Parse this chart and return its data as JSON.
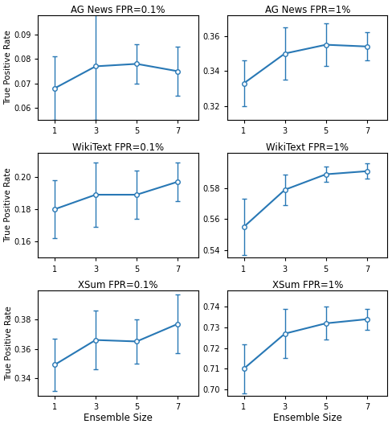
{
  "subplots": [
    {
      "title": "AG News FPR=0.1%",
      "x": [
        1,
        3,
        5,
        7
      ],
      "y": [
        0.068,
        0.077,
        0.078,
        0.075
      ],
      "yerr": [
        0.013,
        0.022,
        0.008,
        0.01
      ],
      "ylim": [
        0.055,
        0.098
      ],
      "yticks": [
        0.06,
        0.07,
        0.08,
        0.09
      ]
    },
    {
      "title": "AG News FPR=1%",
      "x": [
        1,
        3,
        5,
        7
      ],
      "y": [
        0.333,
        0.35,
        0.355,
        0.354
      ],
      "yerr": [
        0.013,
        0.015,
        0.012,
        0.008
      ],
      "ylim": [
        0.312,
        0.372
      ],
      "yticks": [
        0.32,
        0.34,
        0.36
      ]
    },
    {
      "title": "WikiText FPR=0.1%",
      "x": [
        1,
        3,
        5,
        7
      ],
      "y": [
        0.18,
        0.189,
        0.189,
        0.197
      ],
      "yerr": [
        0.018,
        0.02,
        0.015,
        0.012
      ],
      "ylim": [
        0.15,
        0.215
      ],
      "yticks": [
        0.16,
        0.18,
        0.2
      ]
    },
    {
      "title": "WikiText FPR=1%",
      "x": [
        1,
        3,
        5,
        7
      ],
      "y": [
        0.555,
        0.579,
        0.589,
        0.591
      ],
      "yerr": [
        0.018,
        0.01,
        0.005,
        0.005
      ],
      "ylim": [
        0.535,
        0.603
      ],
      "yticks": [
        0.54,
        0.56,
        0.58
      ]
    },
    {
      "title": "XSum FPR=0.1%",
      "x": [
        1,
        3,
        5,
        7
      ],
      "y": [
        0.349,
        0.366,
        0.365,
        0.377
      ],
      "yerr": [
        0.018,
        0.02,
        0.015,
        0.02
      ],
      "ylim": [
        0.328,
        0.4
      ],
      "yticks": [
        0.34,
        0.36,
        0.38
      ]
    },
    {
      "title": "XSum FPR=1%",
      "x": [
        1,
        3,
        5,
        7
      ],
      "y": [
        0.71,
        0.727,
        0.732,
        0.734
      ],
      "yerr": [
        0.012,
        0.012,
        0.008,
        0.005
      ],
      "ylim": [
        0.697,
        0.748
      ],
      "yticks": [
        0.7,
        0.71,
        0.72,
        0.73,
        0.74
      ]
    }
  ],
  "xlabel": "Ensemble Size",
  "ylabel": "True Positive Rate",
  "line_color": "#2878b5",
  "marker": "o",
  "markersize": 4,
  "capsize": 2.5,
  "linewidth": 1.5,
  "nrows": 3,
  "ncols": 2,
  "figwidth": 4.88,
  "figheight": 5.32,
  "dpi": 100
}
